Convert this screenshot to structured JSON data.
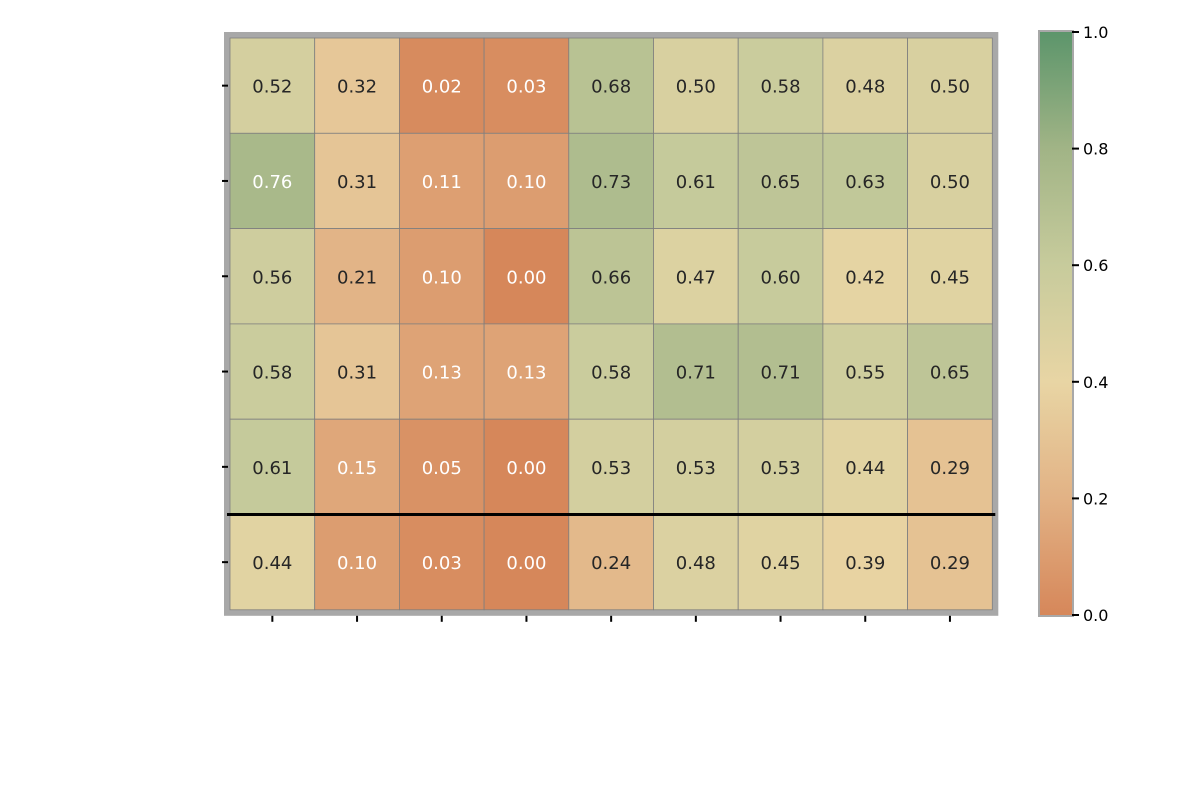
{
  "chart_data": {
    "type": "heatmap",
    "title": "",
    "xlabel": "",
    "ylabel": "",
    "colorbar_label": "",
    "rows": [
      "",
      "",
      "",
      "",
      "",
      ""
    ],
    "columns": [
      "",
      "",
      "",
      "",
      "",
      "",
      "",
      "",
      ""
    ],
    "values": [
      [
        0.52,
        0.32,
        0.02,
        0.03,
        0.68,
        0.5,
        0.58,
        0.48,
        0.5
      ],
      [
        0.76,
        0.31,
        0.11,
        0.1,
        0.73,
        0.61,
        0.65,
        0.63,
        0.5
      ],
      [
        0.56,
        0.21,
        0.1,
        0.0,
        0.66,
        0.47,
        0.6,
        0.42,
        0.45
      ],
      [
        0.58,
        0.31,
        0.13,
        0.13,
        0.58,
        0.71,
        0.71,
        0.55,
        0.65
      ],
      [
        0.61,
        0.15,
        0.05,
        0.0,
        0.53,
        0.53,
        0.53,
        0.44,
        0.29
      ],
      [
        0.44,
        0.1,
        0.03,
        0.0,
        0.24,
        0.48,
        0.45,
        0.39,
        0.29
      ]
    ],
    "value_format": "0.00",
    "separator_after_row": 5,
    "colorbar": {
      "min": 0.0,
      "max": 1.0,
      "ticks": [
        0.0,
        0.2,
        0.4,
        0.6,
        0.8,
        1.0
      ]
    },
    "colormap": [
      "#d6875a",
      "#e2b285",
      "#e8d5a4",
      "#c7cb9c",
      "#a1b486",
      "#5c956b"
    ],
    "grid": true
  }
}
